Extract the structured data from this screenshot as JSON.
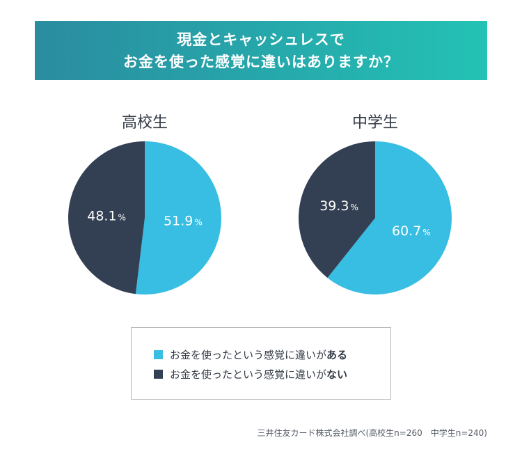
{
  "title": {
    "line1": "現金とキャッシュレスで",
    "line2": "お金を使った感覚に違いはありますか？"
  },
  "legend": [
    {
      "prefix": "お金を使ったという感覚に違いが",
      "emphasis": "ある",
      "color": "#38bde3"
    },
    {
      "prefix": "お金を使ったという感覚に違いが",
      "emphasis": "ない",
      "color": "#333f52"
    }
  ],
  "source": "三井住友カード株式会社調べ(高校生n=260　中学生n=240)",
  "chart_data": [
    {
      "type": "pie",
      "title": "高校生",
      "categories": [
        "お金を使ったという感覚に違いがある",
        "お金を使ったという感覚に違いがない"
      ],
      "values": [
        51.9,
        48.1
      ],
      "labels": [
        "51.9",
        "48.1"
      ],
      "unit": "%",
      "colors": [
        "#38bde3",
        "#333f52"
      ],
      "start": "12 o'clock, clockwise"
    },
    {
      "type": "pie",
      "title": "中学生",
      "categories": [
        "お金を使ったという感覚に違いがある",
        "お金を使ったという感覚に違いがない"
      ],
      "values": [
        60.7,
        39.3
      ],
      "labels": [
        "60.7",
        "39.3"
      ],
      "unit": "%",
      "colors": [
        "#38bde3",
        "#333f52"
      ],
      "start": "12 o'clock, clockwise"
    }
  ]
}
